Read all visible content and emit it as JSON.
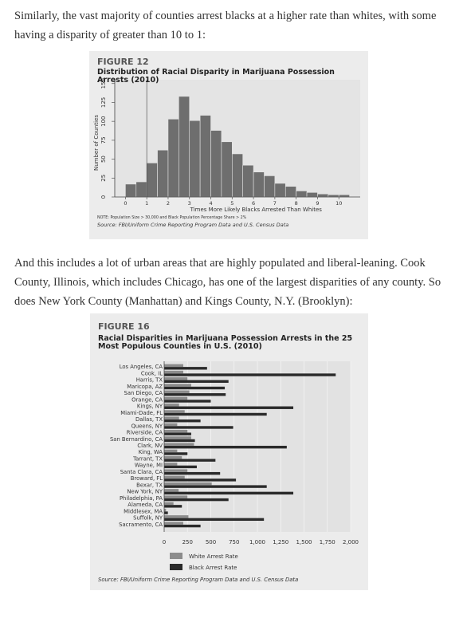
{
  "paragraphs": [
    "Similarly, the vast majority of counties arrest blacks at a higher rate than whites, with some having a disparity of greater than 10 to 1:",
    "And this includes a lot of urban areas that are highly populated and liberal-leaning. Cook County, Illinois, which includes Chicago, has one of the largest disparities of any county. So does New York County (Manhattan) and Kings County, N.Y. (Brooklyn):"
  ],
  "chart_data": [
    {
      "type": "histogram",
      "label": "FIGURE 12",
      "title": "Distribution of Racial Disparity in Marijuana Possession Arrests (2010)",
      "bins": [
        0,
        0.5,
        1,
        1.5,
        2,
        2.5,
        3,
        3.5,
        4,
        4.5,
        5,
        5.5,
        6,
        6.5,
        7,
        7.5,
        8,
        8.5,
        9,
        9.5,
        10,
        10.5
      ],
      "values": [
        17,
        20,
        45,
        62,
        103,
        133,
        101,
        108,
        88,
        73,
        57,
        42,
        33,
        28,
        18,
        14,
        8,
        6,
        4,
        3,
        3
      ],
      "color": "#6e6e6e",
      "xlim": [
        -0.5,
        11
      ],
      "ylim": [
        0,
        155
      ],
      "xticks": [
        0,
        1,
        2,
        3,
        4,
        5,
        6,
        7,
        8,
        9,
        10
      ],
      "yticks": [
        0,
        25,
        50,
        75,
        100,
        125,
        150
      ],
      "ref_line": 1,
      "xlabel": "Times More Likely Blacks Arrested Than Whites",
      "ylabel": "Number of Counties",
      "note": "NOTE: Population Size > 30,000 and Black Population Percentage Share > 2%",
      "source": "Source: FBI/Uniform Crime Reporting Program Data and U.S. Census Data"
    },
    {
      "type": "hbar",
      "label": "FIGURE 16",
      "title": "Racial Disparities in Marijuana Possession Arrests in the 25 Most Populous Counties in U.S. (2010)",
      "categories": [
        "Los Angeles, CA",
        "Cook, IL",
        "Harris, TX",
        "Maricopa, AZ",
        "San Diego, CA",
        "Orange, CA",
        "Kings, NY",
        "Miami-Dade, FL",
        "Dallas, TX",
        "Queens, NY",
        "Riverside, CA",
        "San Bernardino, CA",
        "Clark, NV",
        "King, WA",
        "Tarrant, TX",
        "Wayne, MI",
        "Santa Clara, CA",
        "Broward, FL",
        "Bexar, TX",
        "New York, NY",
        "Philadelphia, PA",
        "Alameda, CA",
        "Middlesex, MA",
        "Suffolk, NY",
        "Sacramento, CA"
      ],
      "series": [
        {
          "name": "White Arrest Rate",
          "color": "#8c8c8c",
          "values": [
            205,
            205,
            250,
            290,
            270,
            250,
            160,
            220,
            160,
            140,
            250,
            290,
            320,
            140,
            190,
            140,
            250,
            220,
            510,
            155,
            250,
            100,
            20,
            260,
            205
          ]
        },
        {
          "name": "Black Arrest Rate",
          "color": "#2a2a2a",
          "values": [
            460,
            1840,
            690,
            650,
            660,
            500,
            1385,
            1100,
            390,
            740,
            290,
            330,
            1315,
            250,
            550,
            350,
            600,
            770,
            1100,
            1385,
            690,
            190,
            40,
            1070,
            390
          ]
        }
      ],
      "xlim": [
        0,
        2000
      ],
      "xticks": [
        0,
        250,
        500,
        750,
        {
          "value": 1000,
          "label": "1,000"
        },
        {
          "value": 1250,
          "label": "1,250"
        },
        {
          "value": 1500,
          "label": "1,500"
        },
        {
          "value": 1750,
          "label": "1,750"
        },
        {
          "value": 2000,
          "label": "2,000"
        }
      ],
      "source": "Source: FBI/Uniform Crime Reporting Program Data and U.S. Census Data"
    }
  ]
}
